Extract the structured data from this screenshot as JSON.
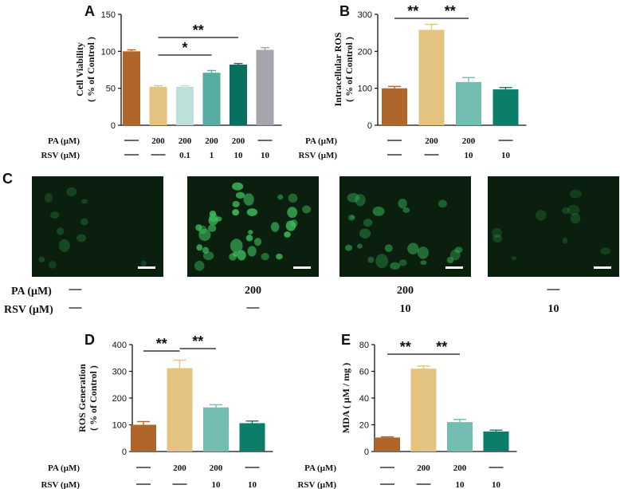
{
  "colors": {
    "brown": "#b0662a",
    "tan": "#e4c27f",
    "pale_teal": "#bde1da",
    "teal": "#56aca0",
    "dark_teal": "#08705f",
    "gray": "#a6a5ab",
    "mid_teal": "#71bdb1",
    "teal_green": "#0b7d68",
    "micro_bg": "#0a1f0e",
    "cell_green": "#3fbf5f"
  },
  "panels": {
    "A": "A",
    "B": "B",
    "C": "C",
    "D": "D",
    "E": "E"
  },
  "row_labels": {
    "pa": "PA (μM)",
    "rsv": "RSV (μM)"
  },
  "chart_data": [
    {
      "panel": "A",
      "type": "bar",
      "ylabel_line1": "Cell Viability",
      "ylabel_line2": "( % of Control )",
      "ylim": [
        0,
        150
      ],
      "yticks": [
        "0",
        "50",
        "100",
        "150"
      ],
      "values": [
        100,
        52,
        52,
        71,
        82,
        102
      ],
      "errors": [
        2,
        1.5,
        1.5,
        3,
        1.5,
        3
      ],
      "color_keys": [
        "brown",
        "tan",
        "pale_teal",
        "teal",
        "dark_teal",
        "gray"
      ],
      "pa": [
        "—",
        "200",
        "200",
        "200",
        "200",
        "—"
      ],
      "rsv": [
        "—",
        "—",
        "0.1",
        "1",
        "10",
        "10"
      ],
      "sig": [
        {
          "from": 1,
          "to": 3,
          "label": "*"
        },
        {
          "from": 1,
          "to": 4,
          "label": "**"
        }
      ]
    },
    {
      "panel": "B",
      "type": "bar",
      "ylabel_line1": "Intracellular ROS",
      "ylabel_line2": "( % of Control )",
      "ylim": [
        0,
        300
      ],
      "yticks": [
        "0",
        "100",
        "200",
        "300"
      ],
      "values": [
        100,
        258,
        117,
        97
      ],
      "errors": [
        5,
        15,
        12,
        5
      ],
      "color_keys": [
        "brown",
        "tan",
        "mid_teal",
        "teal_green"
      ],
      "pa": [
        "—",
        "200",
        "200",
        "—"
      ],
      "rsv": [
        "—",
        "—",
        "10",
        "10"
      ],
      "sig": [
        {
          "from": 0,
          "to": 1,
          "label": "**"
        },
        {
          "from": 1,
          "to": 2,
          "label": "**"
        }
      ]
    },
    {
      "panel": "D",
      "type": "bar",
      "ylabel_line1": "ROS Generation",
      "ylabel_line2": "( % of Control )",
      "ylim": [
        0,
        400
      ],
      "yticks": [
        "0",
        "100",
        "200",
        "300",
        "400"
      ],
      "values": [
        100,
        312,
        165,
        106
      ],
      "errors": [
        12,
        30,
        10,
        8
      ],
      "color_keys": [
        "brown",
        "tan",
        "mid_teal",
        "teal_green"
      ],
      "pa": [
        "—",
        "200",
        "200",
        "—"
      ],
      "rsv": [
        "—",
        "—",
        "10",
        "10"
      ],
      "sig": [
        {
          "from": 0,
          "to": 1,
          "label": "**"
        },
        {
          "from": 1,
          "to": 2,
          "label": "**"
        }
      ]
    },
    {
      "panel": "E",
      "type": "bar",
      "ylabel_line1": "MDA ( μM / mg )",
      "ylabel_line2": "",
      "ylim": [
        0,
        80
      ],
      "yticks": [
        "0",
        "20",
        "40",
        "60",
        "80"
      ],
      "values": [
        10.5,
        62,
        22,
        15
      ],
      "errors": [
        0.5,
        2,
        2,
        1
      ],
      "color_keys": [
        "brown",
        "tan",
        "mid_teal",
        "teal_green"
      ],
      "pa": [
        "—",
        "200",
        "200",
        "—"
      ],
      "rsv": [
        "—",
        "—",
        "10",
        "10"
      ],
      "sig": [
        {
          "from": 0,
          "to": 1,
          "label": "**"
        },
        {
          "from": 1,
          "to": 2,
          "label": "**"
        }
      ]
    }
  ],
  "micrographs": {
    "pa": [
      "—",
      "200",
      "200",
      "—"
    ],
    "rsv": [
      "—",
      "—",
      "10",
      "10"
    ],
    "brightness": [
      0.15,
      1.0,
      0.55,
      0.12
    ]
  }
}
